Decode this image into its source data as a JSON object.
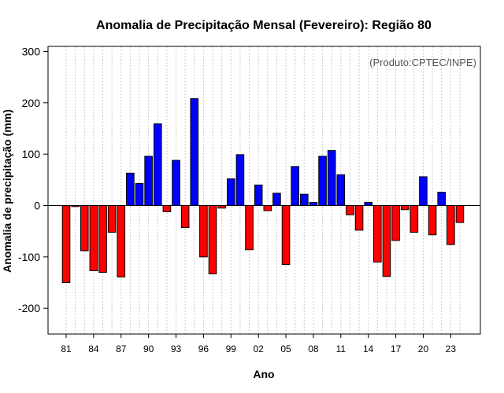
{
  "chart_data": {
    "type": "bar",
    "title": "Anomalia de Precipitação Mensal (Fevereiro): Região 80",
    "annotation": "(Produto:CPTEC/INPE)",
    "xlabel": "Ano",
    "ylabel": "Anomalia de precipitação (mm)",
    "ylim": [
      -250,
      310
    ],
    "yticks": [
      -200,
      -100,
      0,
      100,
      200,
      300
    ],
    "x_tick_labels": [
      "81",
      "84",
      "87",
      "90",
      "93",
      "96",
      "99",
      "02",
      "05",
      "08",
      "11",
      "14",
      "17",
      "20",
      "23"
    ],
    "x_tick_every": 3,
    "positive_color": "#0000ff",
    "negative_color": "#ff0000",
    "categories": [
      "1981",
      "1982",
      "1983",
      "1984",
      "1985",
      "1986",
      "1987",
      "1988",
      "1989",
      "1990",
      "1991",
      "1992",
      "1993",
      "1994",
      "1995",
      "1996",
      "1997",
      "1998",
      "1999",
      "2000",
      "2001",
      "2002",
      "2003",
      "2004",
      "2005",
      "2006",
      "2007",
      "2008",
      "2009",
      "2010",
      "2011",
      "2012",
      "2013",
      "2014",
      "2015",
      "2016",
      "2017",
      "2018",
      "2019",
      "2020",
      "2021",
      "2022",
      "2023",
      "2024"
    ],
    "values": [
      -150,
      -2,
      -88,
      -127,
      -130,
      -52,
      -139,
      63,
      43,
      96,
      159,
      -12,
      88,
      -43,
      208,
      -100,
      -133,
      -5,
      52,
      99,
      -86,
      40,
      -10,
      24,
      -115,
      76,
      22,
      6,
      96,
      107,
      60,
      -18,
      -48,
      6,
      -110,
      -138,
      -68,
      -8,
      -52,
      56,
      -57,
      26,
      -76,
      -33
    ]
  }
}
